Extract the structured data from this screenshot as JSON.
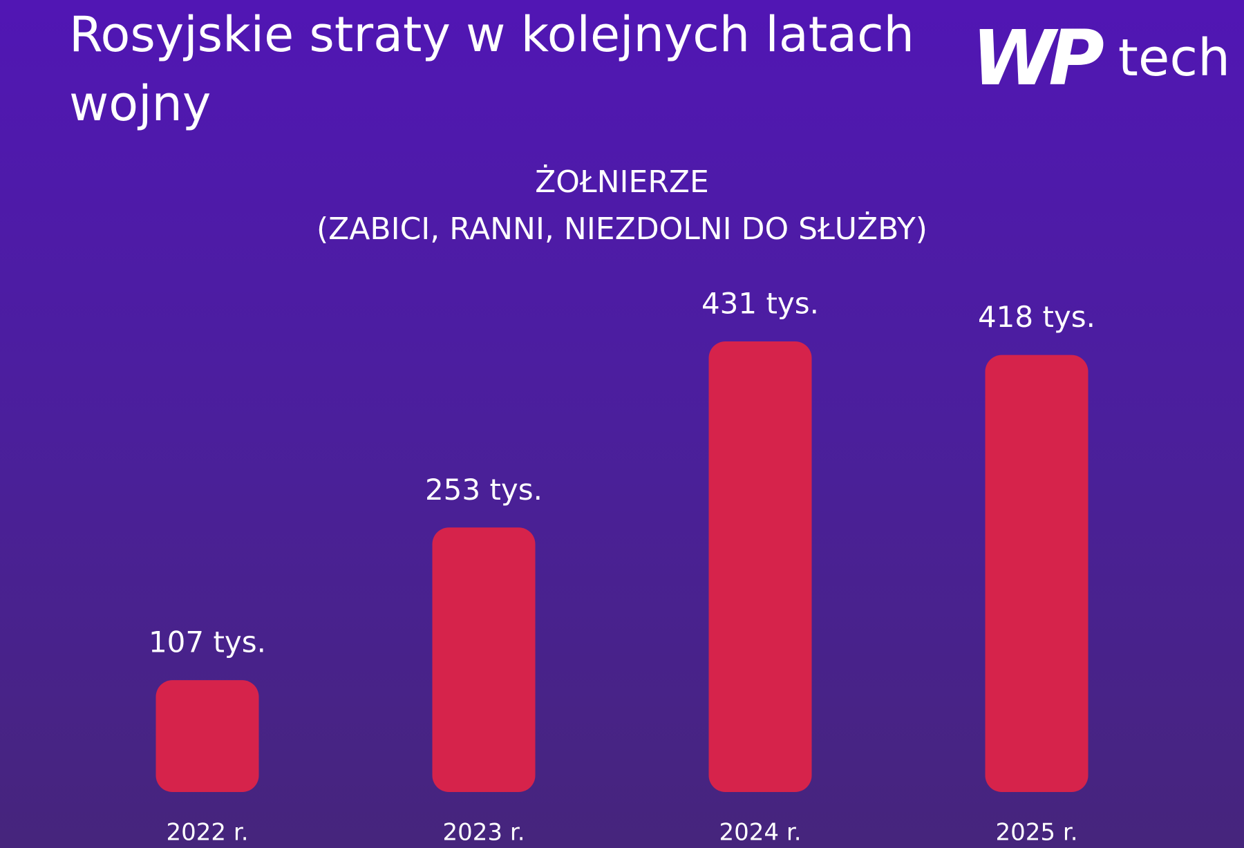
{
  "chart_data": {
    "type": "bar",
    "title": "Rosyjskie straty w kolejnych latach wojny",
    "subtitle": "ŻOŁNIERZE",
    "caption": "(ZABICI, RANNI, NIEZDOLNI DO SŁUŻBY)",
    "categories": [
      "2022 r.",
      "2023 r.",
      "2024 r.",
      "2025 r."
    ],
    "values": [
      107,
      253,
      431,
      418
    ],
    "value_labels": [
      "107 tys.",
      "253 tys.",
      "431 tys.",
      "418 tys."
    ],
    "color": "#d6234b"
  },
  "logo": {
    "mark": "WP",
    "text": "tech"
  }
}
